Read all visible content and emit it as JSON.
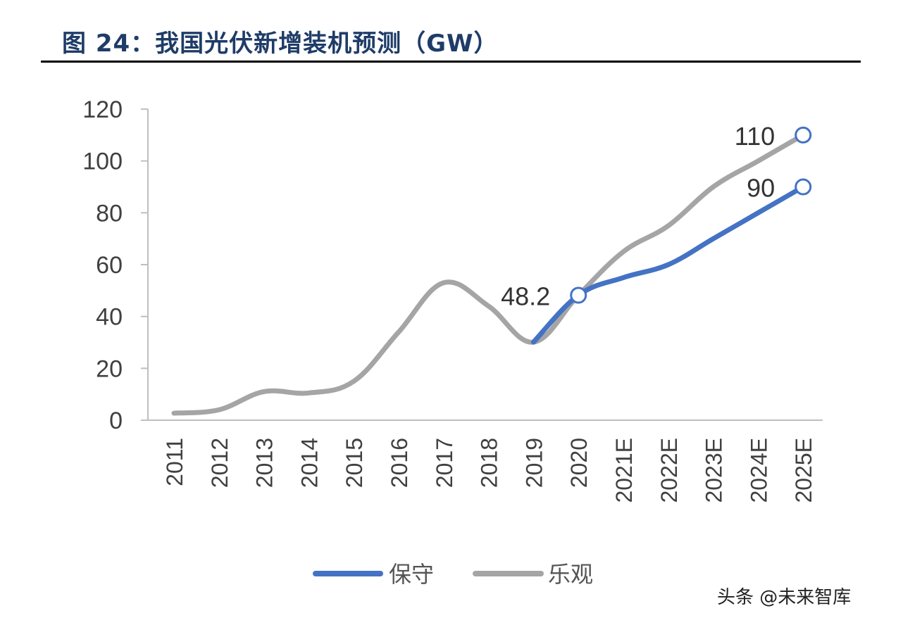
{
  "title": "图 24：我国光伏新增装机预测（GW）",
  "watermark": "头条 @未来智库",
  "chart_data": {
    "type": "line",
    "categories": [
      "2011",
      "2012",
      "2013",
      "2014",
      "2015",
      "2016",
      "2017",
      "2018",
      "2019",
      "2020",
      "2021E",
      "2022E",
      "2023E",
      "2024E",
      "2025E"
    ],
    "ylim": [
      0,
      120
    ],
    "yticks": [
      0,
      20,
      40,
      60,
      80,
      100,
      120
    ],
    "series": [
      {
        "name": "保守",
        "color": "#4472c4",
        "values": [
          null,
          null,
          null,
          null,
          null,
          null,
          null,
          null,
          30.1,
          48.2,
          55,
          60,
          70,
          80,
          90
        ]
      },
      {
        "name": "乐观",
        "color": "#a5a5a5",
        "values": [
          2.7,
          4,
          11,
          10.5,
          15,
          34,
          53,
          44,
          30.1,
          48.2,
          65,
          75,
          90,
          100,
          110
        ]
      }
    ],
    "annotations": [
      {
        "text": "48.2",
        "series": "保守",
        "category": "2020"
      },
      {
        "text": "110",
        "series": "乐观",
        "category": "2025E"
      },
      {
        "text": "90",
        "series": "保守",
        "category": "2025E"
      }
    ],
    "legend": "bottom"
  }
}
